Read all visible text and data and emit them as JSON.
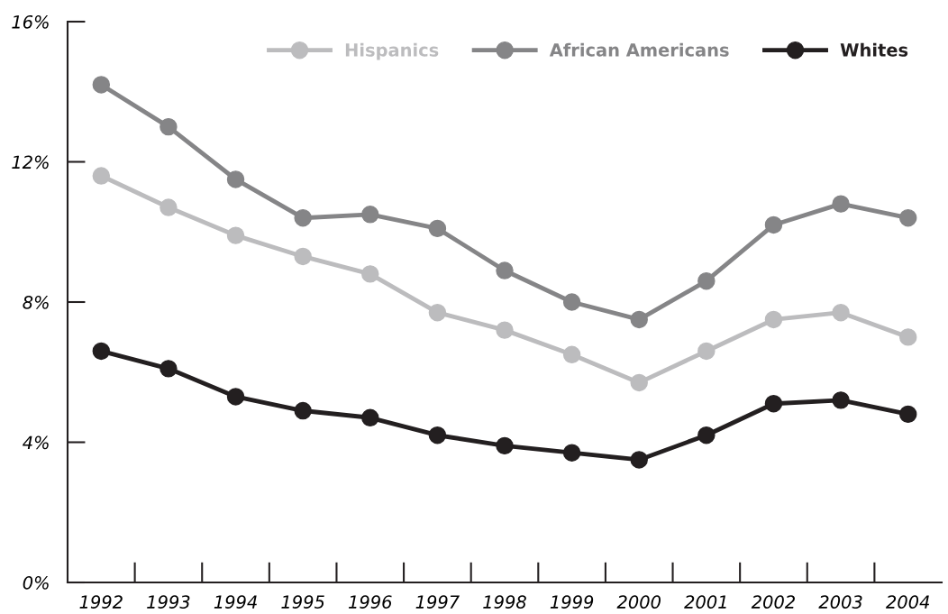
{
  "chart_data": {
    "type": "line",
    "categories": [
      "1992",
      "1993",
      "1994",
      "1995",
      "1996",
      "1997",
      "1998",
      "1999",
      "2000",
      "2001",
      "2002",
      "2003",
      "2004"
    ],
    "series": [
      {
        "name": "Hispanics",
        "color": "#bcbcbe",
        "values": [
          11.6,
          10.7,
          9.9,
          9.3,
          8.8,
          7.7,
          7.2,
          6.5,
          5.7,
          6.6,
          7.5,
          7.7,
          7.0
        ]
      },
      {
        "name": "African Americans",
        "color": "#858587",
        "values": [
          14.2,
          13.0,
          11.5,
          10.4,
          10.5,
          10.1,
          8.9,
          8.0,
          7.5,
          8.6,
          10.2,
          10.8,
          10.4
        ]
      },
      {
        "name": "Whites",
        "color": "#231f20",
        "values": [
          6.6,
          6.1,
          5.3,
          4.9,
          4.7,
          4.2,
          3.9,
          3.7,
          3.5,
          4.2,
          5.1,
          5.2,
          4.8
        ]
      }
    ],
    "ylim": [
      0,
      16
    ],
    "yticks": [
      {
        "value": 0,
        "label": "0%"
      },
      {
        "value": 4,
        "label": "4%"
      },
      {
        "value": 8,
        "label": "8%"
      },
      {
        "value": 12,
        "label": "12%"
      },
      {
        "value": 16,
        "label": "16%"
      }
    ],
    "marker": "circle",
    "line_style": "solid",
    "grid": false,
    "legend": "top right"
  }
}
